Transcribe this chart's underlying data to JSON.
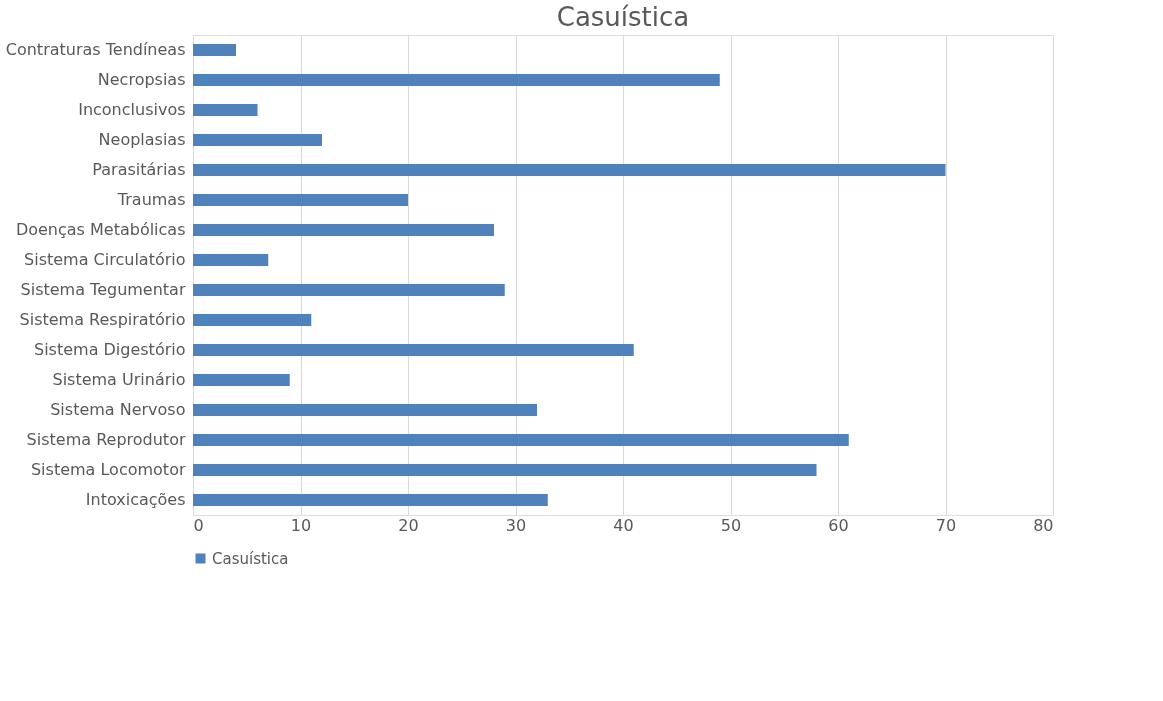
{
  "chart_data": {
    "type": "bar",
    "orientation": "horizontal",
    "title": "Casuística",
    "categories": [
      "Contraturas Tendíneas",
      "Necropsias",
      "Inconclusivos",
      "Neoplasias",
      "Parasitárias",
      "Traumas",
      "Doenças Metabólicas",
      "Sistema Circulatório",
      "Sistema Tegumentar",
      "Sistema Respiratório",
      "Sistema Digestório",
      "Sistema Urinário",
      "Sistema Nervoso",
      "Sistema Reprodutor",
      "Sistema Locomotor",
      "Intoxicações"
    ],
    "series": [
      {
        "name": "Casuística",
        "color": "#4f81bd",
        "values": [
          4,
          49,
          6,
          12,
          70,
          20,
          28,
          7,
          29,
          11,
          41,
          9,
          32,
          61,
          58,
          33
        ]
      }
    ],
    "xlim": [
      0,
      80
    ],
    "xticks": [
      0,
      10,
      20,
      30,
      40,
      50,
      60,
      70,
      80
    ],
    "grid": "x",
    "legend": "bottom"
  }
}
